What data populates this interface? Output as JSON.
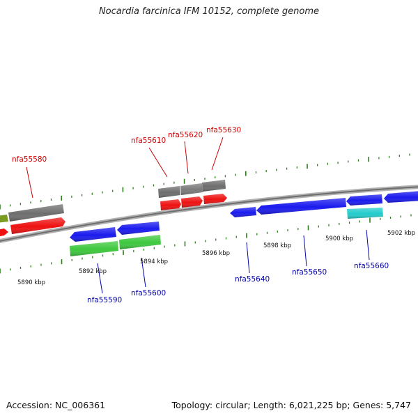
{
  "title": "Nocardia farcinica IFM 10152, complete genome",
  "footer": {
    "accession": "Accession: NC_006361",
    "summary": "Topology: circular; Length: 6,021,225 bp; Genes: 5,747"
  },
  "colors": {
    "backbone": "#8a8a8a",
    "tick": "#2e7d1e",
    "red": "#ee1111",
    "gray": "#6e6e6e",
    "blue": "#1a1aee",
    "green": "#3ec83e",
    "olive": "#7a9a22",
    "cyan": "#22cccc",
    "label_top": "#cc0000",
    "label_bottom": "#0000aa"
  },
  "scale_labels": [
    {
      "text": "5890 kbp",
      "kbp": 5890
    },
    {
      "text": "5892 kbp",
      "kbp": 5892
    },
    {
      "text": "5894 kbp",
      "kbp": 5894
    },
    {
      "text": "5896 kbp",
      "kbp": 5896
    },
    {
      "text": "5898 kbp",
      "kbp": 5898
    },
    {
      "text": "5900 kbp",
      "kbp": 5900
    },
    {
      "text": "5902 kbp",
      "kbp": 5902
    }
  ],
  "gene_labels_top": [
    "nfa55580",
    "nfa55610",
    "nfa55620",
    "nfa55630"
  ],
  "gene_labels_bottom": [
    "nfa55590",
    "nfa55600",
    "nfa55640",
    "nfa55650",
    "nfa55660"
  ]
}
